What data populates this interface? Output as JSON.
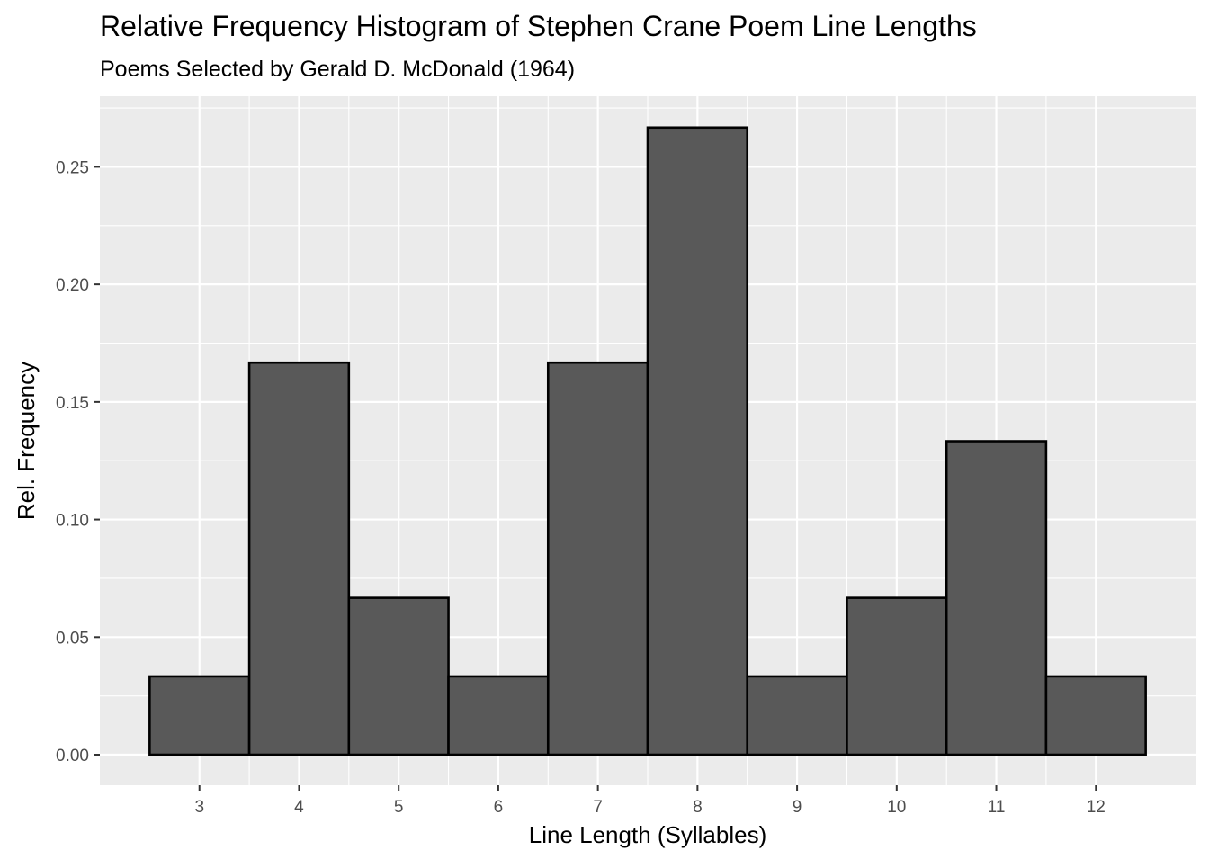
{
  "chart_data": {
    "type": "bar",
    "title": "Relative Frequency Histogram of Stephen Crane Poem Line Lengths",
    "subtitle": "Poems Selected by Gerald D. McDonald (1964)",
    "xlabel": "Line Length (Syllables)",
    "ylabel": "Rel. Frequency",
    "categories": [
      3,
      4,
      5,
      6,
      7,
      8,
      9,
      10,
      11,
      12
    ],
    "values": [
      0.0333,
      0.1667,
      0.0667,
      0.0333,
      0.1667,
      0.2667,
      0.0333,
      0.0667,
      0.1333,
      0.0333
    ],
    "bin_width": 1,
    "xlim": [
      2,
      13
    ],
    "ylim": [
      -0.013,
      0.28
    ],
    "x_ticks": [
      "3",
      "4",
      "5",
      "6",
      "7",
      "8",
      "9",
      "10",
      "11",
      "12"
    ],
    "y_ticks": [
      "0.00",
      "0.05",
      "0.10",
      "0.15",
      "0.20",
      "0.25"
    ],
    "grid": true,
    "legend": "none",
    "colors": {
      "bar_fill": "#595959",
      "bar_stroke": "#000000",
      "panel_background": "#ebebeb",
      "gridline": "#ffffff",
      "tick_label": "#4d4d4d",
      "text": "#000000"
    }
  }
}
